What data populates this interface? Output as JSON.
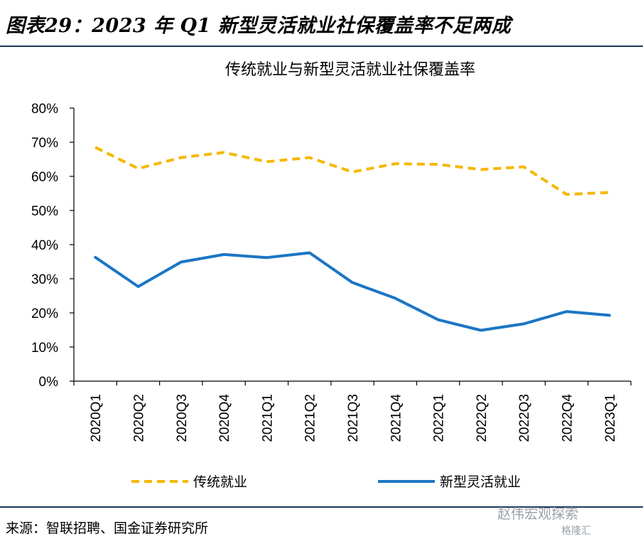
{
  "figure": {
    "title": "图表29：2023 年 Q1 新型灵活就业社保覆盖率不足两成",
    "source": "来源：智联招聘、国金证券研究所",
    "watermark": "赵伟宏观探索",
    "watermark2": "格隆汇"
  },
  "chart_data": {
    "type": "line",
    "title": "传统就业与新型灵活就业社保覆盖率",
    "categories": [
      "2020Q1",
      "2020Q2",
      "2020Q3",
      "2020Q4",
      "2021Q1",
      "2021Q2",
      "2021Q3",
      "2021Q4",
      "2022Q1",
      "2022Q2",
      "2022Q3",
      "2022Q4",
      "2023Q1"
    ],
    "ylim": [
      0,
      80
    ],
    "yticks": [
      0,
      10,
      20,
      30,
      40,
      50,
      60,
      70,
      80
    ],
    "ytick_labels": [
      "0%",
      "10%",
      "20%",
      "30%",
      "40%",
      "50%",
      "60%",
      "70%",
      "80%"
    ],
    "grid": false,
    "legend_position": "bottom",
    "series": [
      {
        "name": "传统就业",
        "color": "#f5b800",
        "style": "dashed",
        "values": [
          68.5,
          62.3,
          65.5,
          67.0,
          64.3,
          65.5,
          61.3,
          63.7,
          63.5,
          62.0,
          62.8,
          54.7,
          55.3
        ]
      },
      {
        "name": "新型灵活就业",
        "color": "#1b76c4",
        "style": "solid",
        "values": [
          36.3,
          27.7,
          34.9,
          37.1,
          36.2,
          37.6,
          28.9,
          24.3,
          18.0,
          14.9,
          16.8,
          20.4,
          19.3
        ]
      }
    ]
  }
}
